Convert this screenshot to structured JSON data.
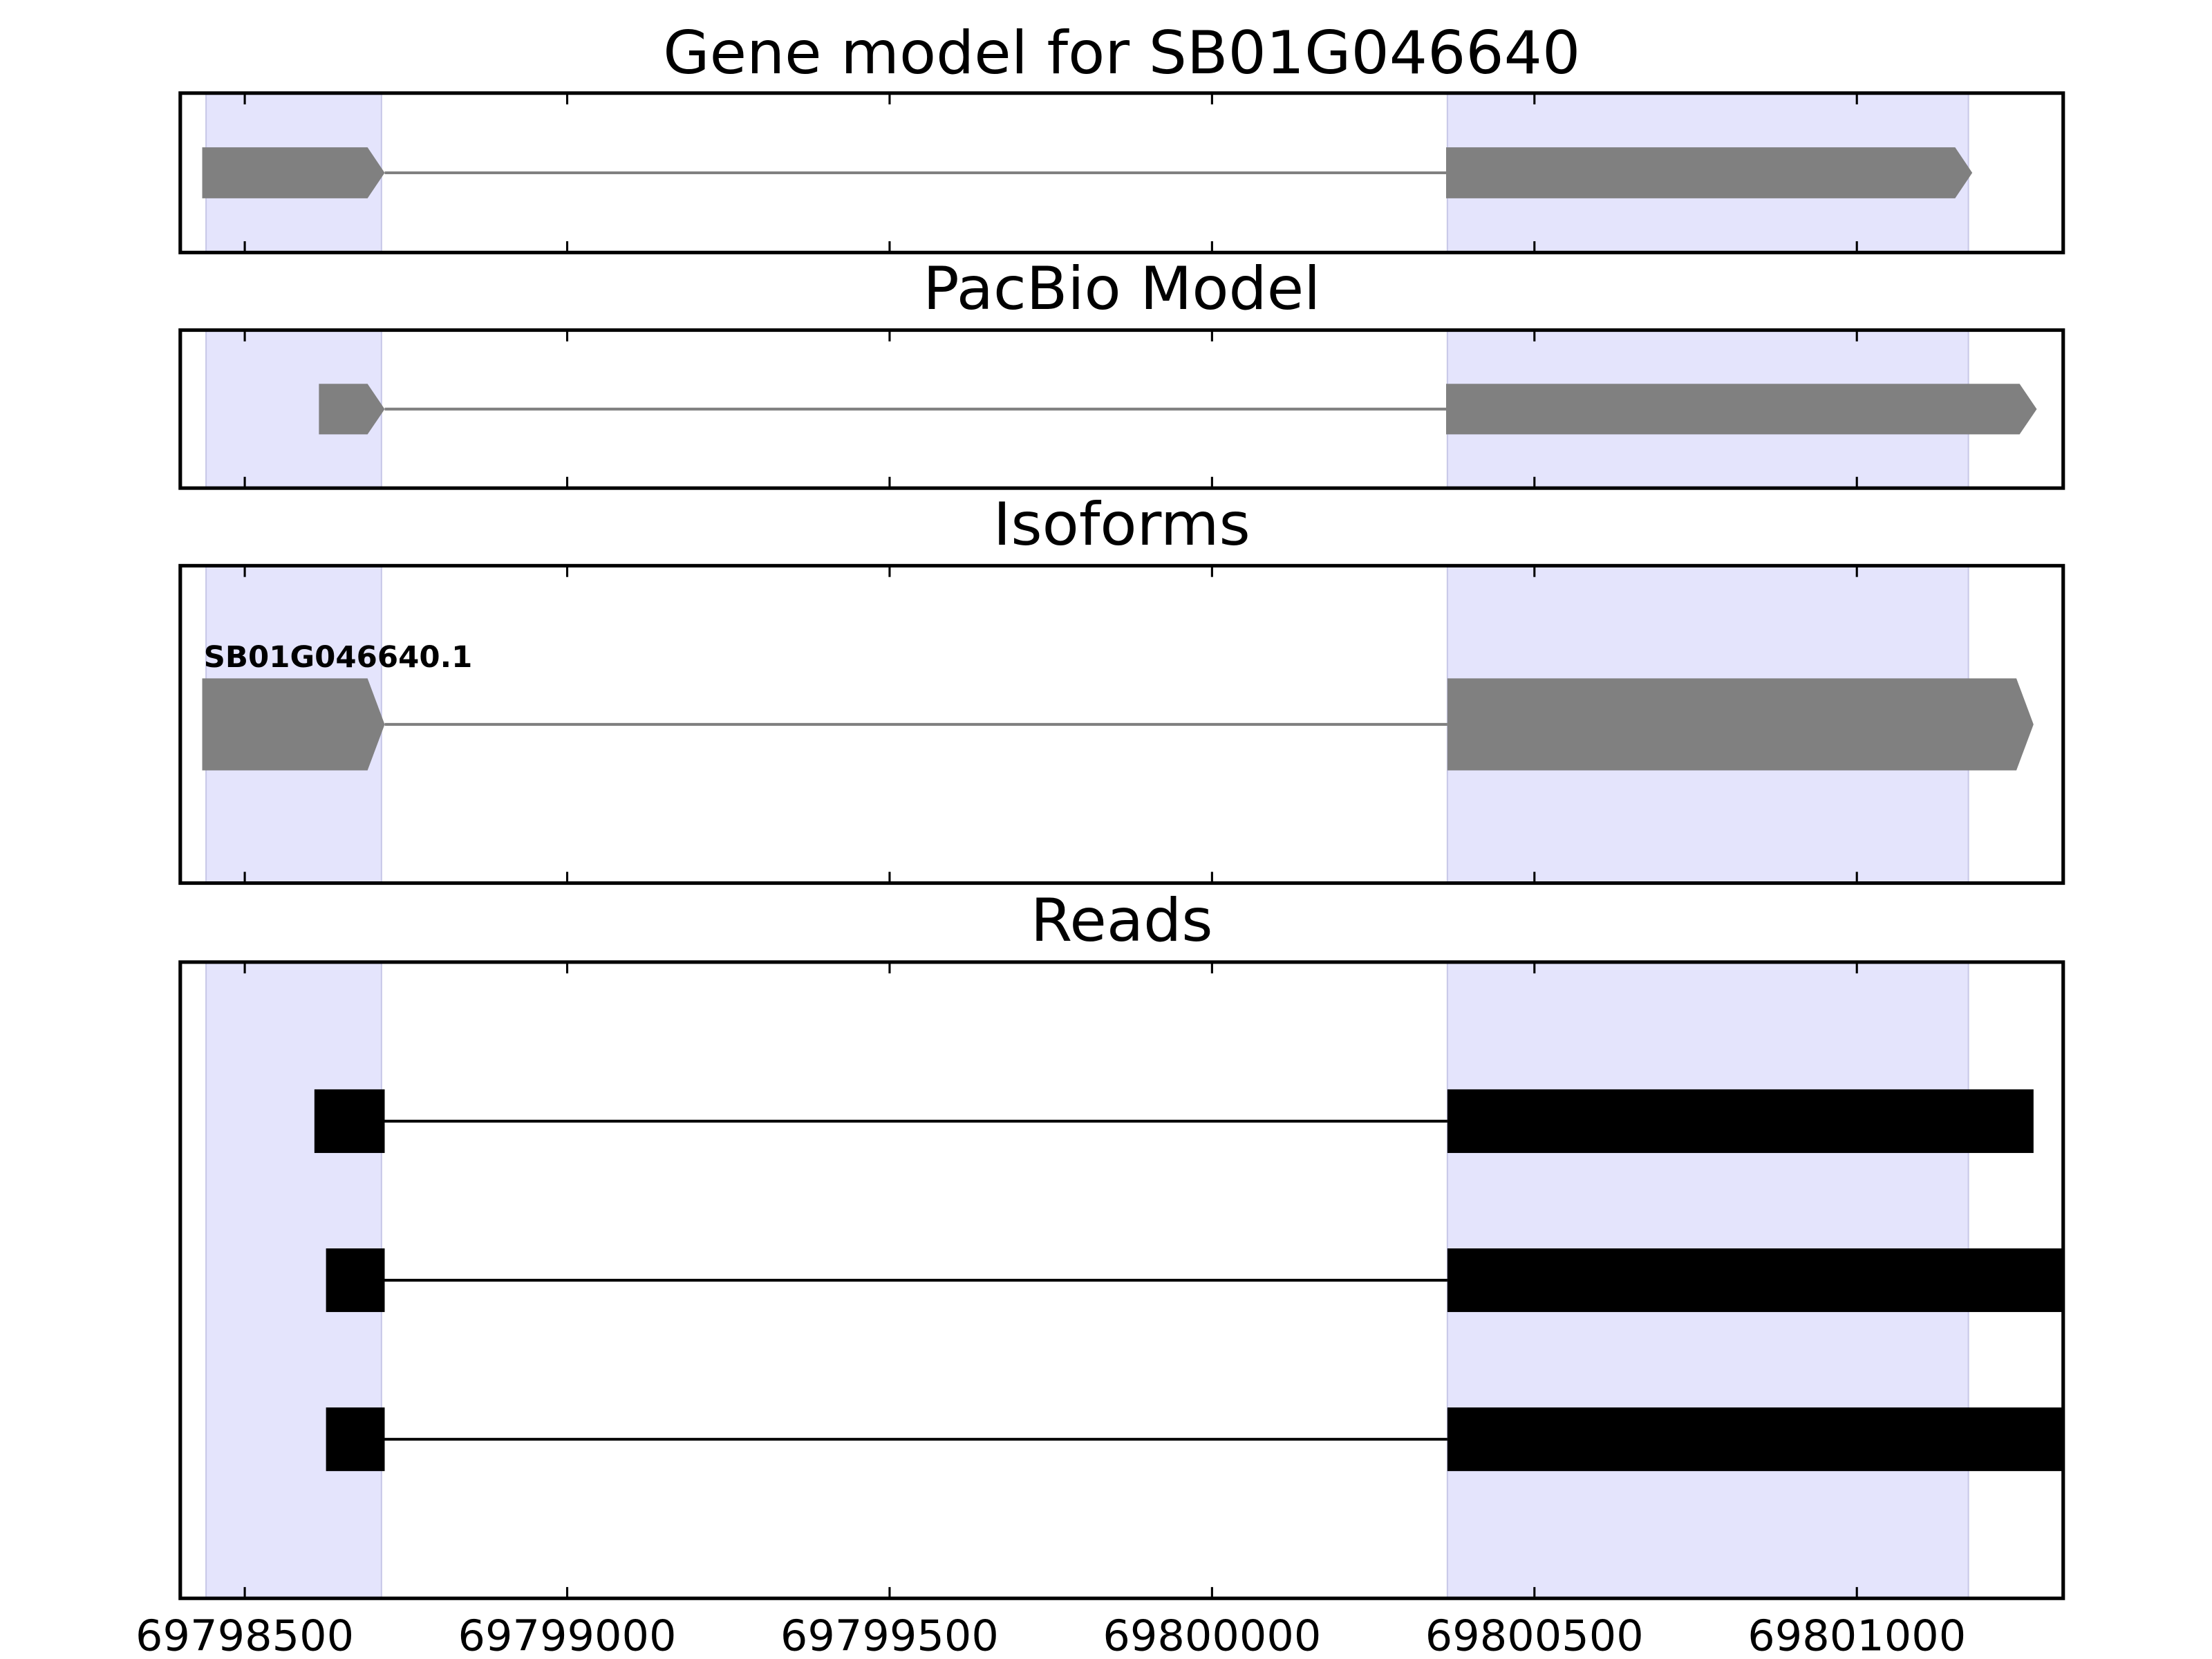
{
  "chart_data": [
    {
      "type": "gene-track",
      "title": "Gene model for SB01G046640",
      "xlim": [
        69798400,
        69801320
      ],
      "xticks": [
        69798500,
        69799000,
        69799500,
        69800000,
        69800500,
        69801000
      ],
      "highlight_color": "#e4e4fc",
      "color": "#808080",
      "shape": "arrow",
      "highlights": [
        [
          69798440,
          69798712
        ],
        [
          69800365,
          69801173
        ]
      ],
      "features": [
        {
          "exons": [
            [
              69798434,
              69798717
            ],
            [
              69800363,
              69801179
            ]
          ]
        }
      ]
    },
    {
      "type": "gene-track",
      "title": "PacBio Model",
      "xlim": [
        69798400,
        69801320
      ],
      "xticks": [
        69798500,
        69799000,
        69799500,
        69800000,
        69800500,
        69801000
      ],
      "highlight_color": "#e4e4fc",
      "color": "#808080",
      "shape": "arrow",
      "highlights": [
        [
          69798440,
          69798712
        ],
        [
          69800365,
          69801173
        ]
      ],
      "features": [
        {
          "exons": [
            [
              69798615,
              69798717
            ],
            [
              69800363,
              69801279
            ]
          ]
        }
      ]
    },
    {
      "type": "gene-track",
      "title": "Isoforms",
      "xlim": [
        69798400,
        69801320
      ],
      "xticks": [
        69798500,
        69799000,
        69799500,
        69800000,
        69800500,
        69801000
      ],
      "highlight_color": "#e4e4fc",
      "color": "#808080",
      "shape": "arrow",
      "highlights": [
        [
          69798440,
          69798712
        ],
        [
          69800365,
          69801173
        ]
      ],
      "features": [
        {
          "name": "SB01G046640.1",
          "exons": [
            [
              69798434,
              69798717
            ],
            [
              69800365,
              69801274
            ]
          ]
        }
      ]
    },
    {
      "type": "gene-track",
      "title": "Reads",
      "xlim": [
        69798400,
        69801320
      ],
      "xticks": [
        69798500,
        69799000,
        69799500,
        69800000,
        69800500,
        69801000
      ],
      "show_tick_labels": true,
      "highlight_color": "#e4e4fc",
      "color": "#000000",
      "shape": "box",
      "highlights": [
        [
          69798440,
          69798712
        ],
        [
          69800365,
          69801173
        ]
      ],
      "features": [
        {
          "exons": [
            [
              69798608,
              69798717
            ],
            [
              69800365,
              69801274
            ]
          ]
        },
        {
          "exons": [
            [
              69798626,
              69798717
            ],
            [
              69800365,
              69801320
            ]
          ]
        },
        {
          "exons": [
            [
              69798626,
              69798717
            ],
            [
              69800365,
              69801320
            ]
          ]
        }
      ]
    }
  ]
}
